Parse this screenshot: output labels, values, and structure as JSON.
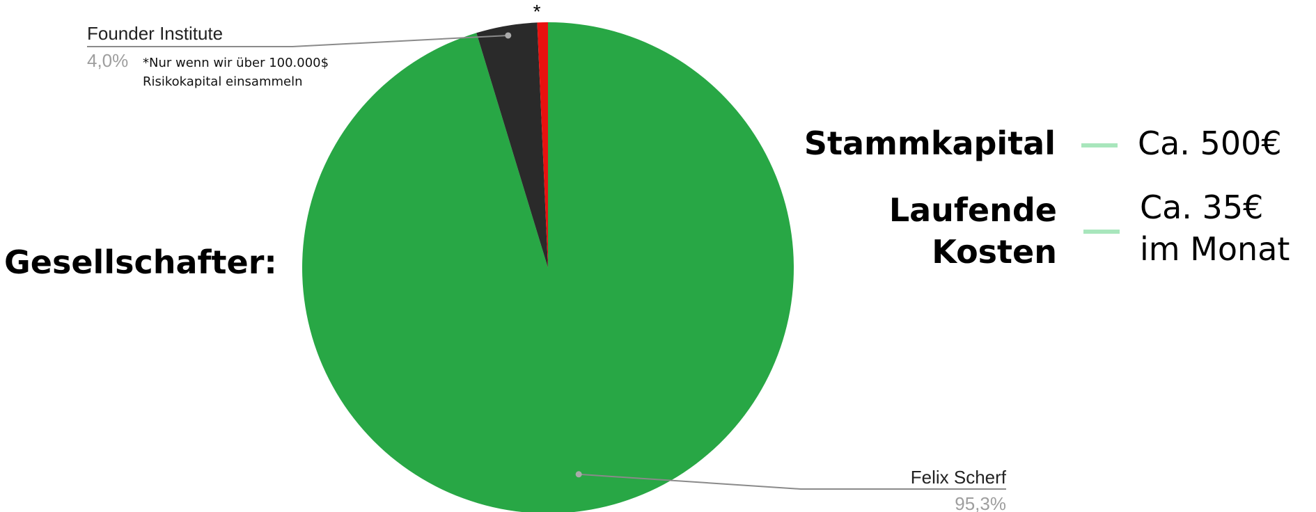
{
  "chart_data": {
    "type": "pie",
    "title": "",
    "slices": [
      {
        "name": "Felix Scherf",
        "value": 95.3,
        "value_label": "95,3%",
        "color": "#28a745"
      },
      {
        "name": "Founder Institute",
        "value": 4.0,
        "value_label": "4,0%",
        "color": "#2a2a2a"
      },
      {
        "name": "*",
        "value": 0.7,
        "value_label": "",
        "color": "#e8110f"
      }
    ],
    "start_angle_deg": 0,
    "direction": "clockwise",
    "legend": "none",
    "label_color": "#222222",
    "value_label_color": "#9e9e9e",
    "leader_color": "#8a8a8a"
  },
  "heading": "Gesellschafter:",
  "note": {
    "line1": "*Nur wenn wir über 100.000$",
    "line2": "Risikokapital einsammeln"
  },
  "info": {
    "accent_color": "#a8e6bc",
    "stammkapital": {
      "label": "Stammkapital",
      "value": "Ca. 500€"
    },
    "laufende": {
      "label_line1": "Laufende",
      "label_line2": "Kosten",
      "value_line1": "Ca. 35€",
      "value_line2": "im Monat"
    }
  }
}
